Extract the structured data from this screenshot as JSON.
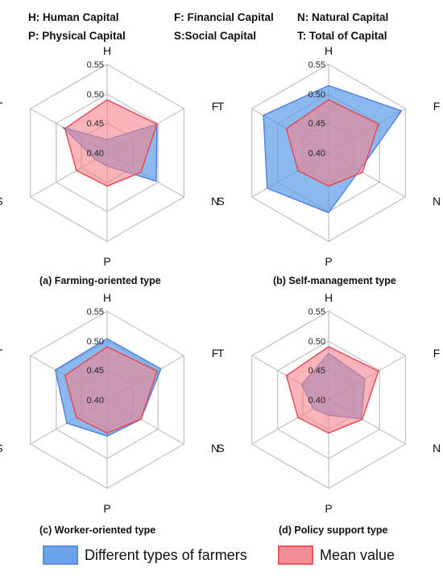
{
  "key": {
    "row1": [
      "H: Human Capital",
      "F: Financial Capital",
      "N: Natural Capital"
    ],
    "row2": [
      "P: Physical Capital",
      "S:Social Capital",
      "T: Total of Capital"
    ]
  },
  "colors": {
    "series_fill": "#5b9be6",
    "series_stroke": "#4a7fe0",
    "mean_fill": "#f3828a",
    "mean_stroke": "#e8434e",
    "grid": "#b5b5b5"
  },
  "legend": {
    "series_label": "Different types of farmers",
    "mean_label": "Mean value"
  },
  "chart_data": [
    {
      "type": "radar",
      "caption": "(a) Farming-oriented type",
      "axes": [
        "H",
        "F",
        "N",
        "P",
        "S",
        "T"
      ],
      "ticks": [
        "0.55",
        "0.50",
        "0.45",
        "0.40"
      ],
      "rlim": [
        0.35,
        0.55
      ],
      "grid": true,
      "series": [
        {
          "name": "Different types of farmers",
          "values": [
            0.38,
            0.48,
            0.478,
            0.38,
            0.38,
            0.465
          ]
        },
        {
          "name": "Mean value",
          "values": [
            0.47,
            0.48,
            0.438,
            0.425,
            0.43,
            0.46
          ]
        }
      ]
    },
    {
      "type": "radar",
      "caption": "(b) Self-management type",
      "axes": [
        "H",
        "F",
        "N",
        "P",
        "S",
        "T"
      ],
      "ticks": [
        "0.55",
        "0.50",
        "0.45",
        "0.40"
      ],
      "rlim": [
        0.35,
        0.55
      ],
      "grid": true,
      "series": [
        {
          "name": "Different types of farmers",
          "values": [
            0.502,
            0.54,
            0.43,
            0.485,
            0.51,
            0.52
          ]
        },
        {
          "name": "Mean value",
          "values": [
            0.47,
            0.48,
            0.438,
            0.425,
            0.43,
            0.46
          ]
        }
      ]
    },
    {
      "type": "radar",
      "caption": "(c) Worker-oriented type",
      "axes": [
        "H",
        "F",
        "N",
        "P",
        "S",
        "T"
      ],
      "ticks": [
        "0.55",
        "0.50",
        "0.45",
        "0.40"
      ],
      "rlim": [
        0.35,
        0.55
      ],
      "grid": true,
      "series": [
        {
          "name": "Different types of farmers",
          "values": [
            0.488,
            0.49,
            0.438,
            0.432,
            0.455,
            0.485
          ]
        },
        {
          "name": "Mean value",
          "values": [
            0.47,
            0.48,
            0.438,
            0.425,
            0.43,
            0.46
          ]
        }
      ]
    },
    {
      "type": "radar",
      "caption": "(d) Policy support type",
      "axes": [
        "H",
        "F",
        "N",
        "P",
        "S",
        "T"
      ],
      "ticks": [
        "0.55",
        "0.50",
        "0.45",
        "0.40"
      ],
      "rlim": [
        0.35,
        0.55
      ],
      "grid": true,
      "series": [
        {
          "name": "Different types of farmers",
          "values": [
            0.455,
            0.445,
            0.435,
            0.385,
            0.39,
            0.42
          ]
        },
        {
          "name": "Mean value",
          "values": [
            0.47,
            0.48,
            0.438,
            0.425,
            0.43,
            0.46
          ]
        }
      ]
    }
  ]
}
